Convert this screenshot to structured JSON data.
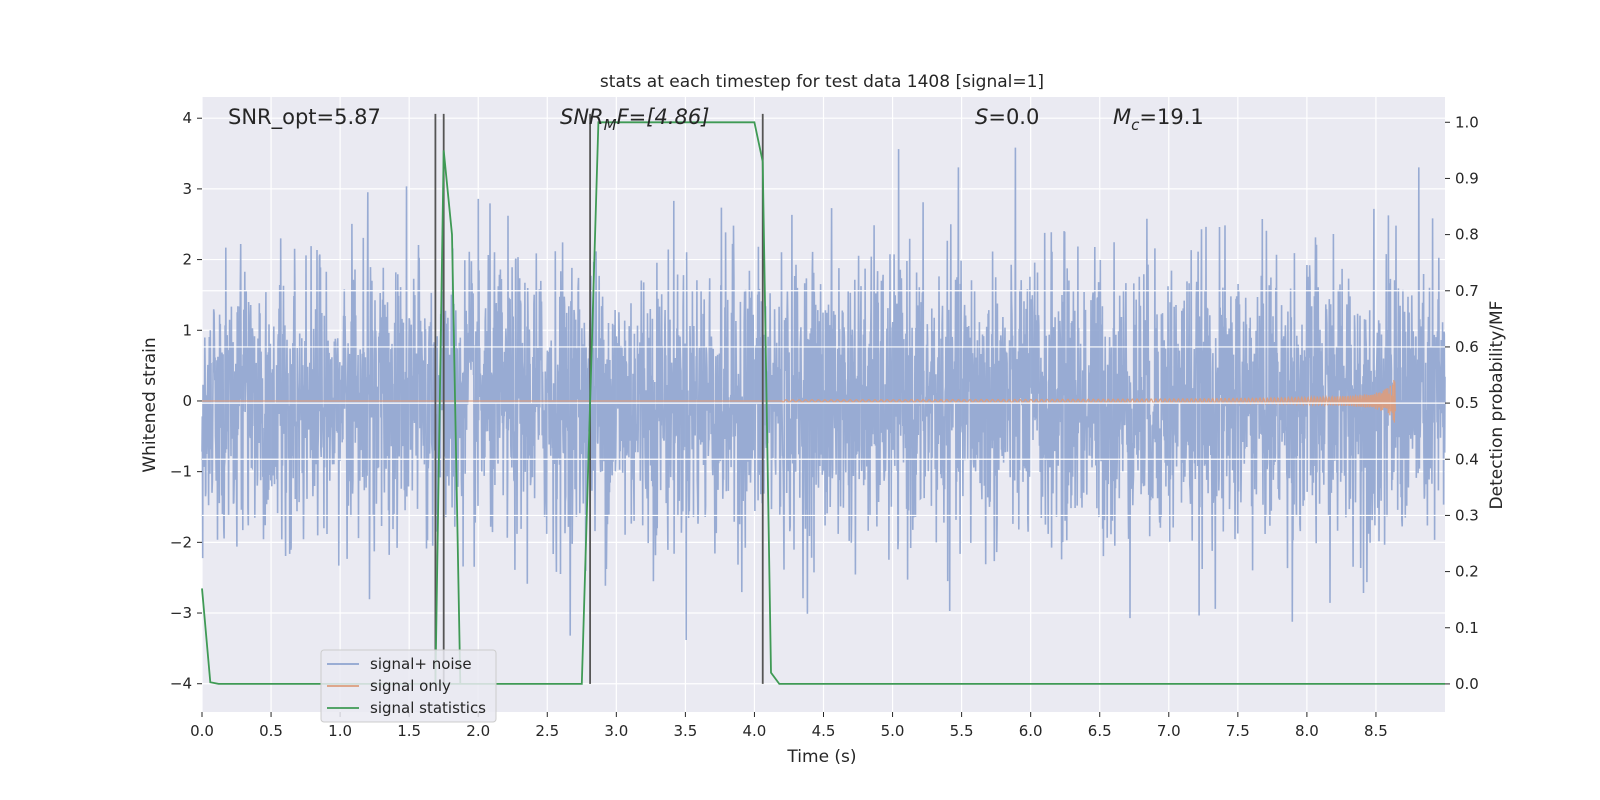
{
  "chart_data": {
    "type": "line",
    "title": "stats at each timestep for test data 1408 [signal=1]",
    "xlabel": "Time (s)",
    "ylabel_left": "Whitened strain",
    "ylabel_right": "Detection probability/MF",
    "xlim": [
      0.0,
      9.0
    ],
    "ylim_left": [
      -4.4,
      4.3
    ],
    "ylim_right": [
      -0.05,
      1.045
    ],
    "x_ticks": [
      "0.0",
      "0.5",
      "1.0",
      "1.5",
      "2.0",
      "2.5",
      "3.0",
      "3.5",
      "4.0",
      "4.5",
      "5.0",
      "5.5",
      "6.0",
      "6.5",
      "7.0",
      "7.5",
      "8.0",
      "8.5"
    ],
    "y_ticks_left": [
      "4",
      "3",
      "2",
      "1",
      "0",
      "−1",
      "−2",
      "−3",
      "−4"
    ],
    "y_ticks_right": [
      "1.0",
      "0.9",
      "0.8",
      "0.7",
      "0.6",
      "0.5",
      "0.4",
      "0.3",
      "0.2",
      "0.1",
      "0.0"
    ],
    "grid": true,
    "legend_position": "lower-left",
    "annotations": {
      "snr_opt": "SNR_opt=5.87",
      "snr_mf_base": "SNR",
      "snr_mf_sub": "M",
      "snr_mf_rest": "F=[4.86]",
      "s_label": "S",
      "s_value": "=0.0",
      "mc_base": "M",
      "mc_sub": "c",
      "mc_value": "=19.1"
    },
    "series": [
      {
        "name": "signal+ noise",
        "color": "#8fa4cf",
        "description_range": [
          -3.4,
          3.9
        ]
      },
      {
        "name": "signal only",
        "color": "#dd9c7c"
      },
      {
        "name": "signal statistics",
        "color": "#3f9a55",
        "x": [
          0.0,
          0.06,
          0.12,
          2.75,
          2.87,
          4.0,
          4.06,
          4.12,
          4.18,
          9.0
        ],
        "values": [
          0.17,
          0.003,
          0.0,
          0.0,
          1.0,
          1.0,
          0.93,
          0.02,
          0.0,
          0.0
        ]
      },
      {
        "name": "",
        "color": "#3f9a55",
        "x": [
          1.69,
          1.75,
          1.81,
          1.87
        ],
        "values": [
          0.0,
          0.95,
          0.8,
          0.0
        ]
      }
    ],
    "vertical_lines": {
      "color": "#555555",
      "x": [
        1.69,
        1.75,
        2.81,
        4.06
      ]
    },
    "horizontal_white_lines_right": [
      0.7,
      0.6,
      0.5,
      0.4,
      0.3
    ]
  }
}
